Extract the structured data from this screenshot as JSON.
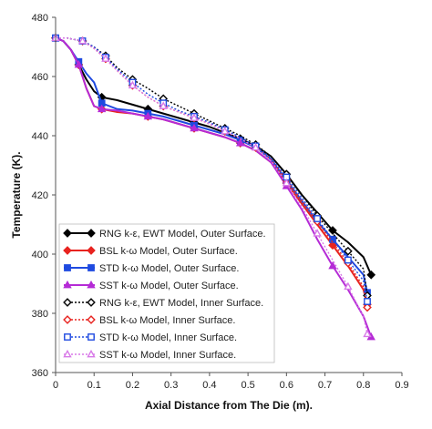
{
  "chart_data": {
    "type": "line",
    "xlabel": "Axial Distance from The Die (m).",
    "ylabel": "Temperature (K).",
    "xlim": [
      0,
      0.9
    ],
    "ylim": [
      360,
      480
    ],
    "xticks": [
      0,
      0.1,
      0.2,
      0.3,
      0.4,
      0.5,
      0.6,
      0.7,
      0.8,
      0.9
    ],
    "xtick_labels": [
      "0",
      "0.1",
      "0.2",
      "0.3",
      "0.4",
      "0.5",
      "0.6",
      "0.7",
      "0.8",
      "0.9"
    ],
    "yticks": [
      360,
      380,
      400,
      420,
      440,
      460,
      480
    ],
    "ytick_labels": [
      "360",
      "380",
      "400",
      "420",
      "440",
      "460",
      "480"
    ],
    "legend_position": "bottom-left",
    "grid": false,
    "series": [
      {
        "name": "RNG k-ε, EWT Model, Outer Surface.",
        "color": "#000000",
        "marker": "diamond",
        "dash": "solid",
        "markerFill": "#000000",
        "x": [
          0.0,
          0.02,
          0.04,
          0.06,
          0.08,
          0.1,
          0.12,
          0.16,
          0.2,
          0.24,
          0.28,
          0.32,
          0.36,
          0.4,
          0.44,
          0.48,
          0.52,
          0.56,
          0.6,
          0.64,
          0.68,
          0.72,
          0.76,
          0.8,
          0.82
        ],
        "y": [
          473,
          472,
          469,
          464,
          459,
          455,
          453,
          452,
          450.5,
          449,
          447.5,
          446,
          444.5,
          443,
          441,
          439,
          436.5,
          433,
          427,
          420,
          414,
          408,
          404,
          399,
          393
        ]
      },
      {
        "name": "BSL k-ω Model, Outer Surface.",
        "color": "#e8231f",
        "marker": "diamond",
        "dash": "solid",
        "markerFill": "#e8231f",
        "x": [
          0.0,
          0.02,
          0.04,
          0.06,
          0.08,
          0.1,
          0.12,
          0.16,
          0.2,
          0.24,
          0.28,
          0.32,
          0.36,
          0.4,
          0.44,
          0.48,
          0.52,
          0.56,
          0.6,
          0.64,
          0.68,
          0.72,
          0.76,
          0.8,
          0.81
        ],
        "y": [
          473,
          472,
          469,
          464,
          456,
          450,
          449,
          448,
          447.5,
          446.5,
          445.5,
          444,
          442.5,
          441,
          439.5,
          437.5,
          435,
          431,
          424,
          417,
          410,
          403,
          396,
          388,
          383
        ]
      },
      {
        "name": "STD k-ω Model, Outer Surface.",
        "color": "#1f4ae0",
        "marker": "square",
        "dash": "solid",
        "markerFill": "#1f4ae0",
        "x": [
          0.0,
          0.02,
          0.04,
          0.06,
          0.08,
          0.1,
          0.12,
          0.16,
          0.2,
          0.24,
          0.28,
          0.32,
          0.36,
          0.4,
          0.44,
          0.48,
          0.52,
          0.56,
          0.6,
          0.64,
          0.68,
          0.72,
          0.76,
          0.8,
          0.81
        ],
        "y": [
          473,
          472,
          469,
          465,
          461,
          458,
          451,
          449,
          448.5,
          447.5,
          446.5,
          445,
          443.5,
          442,
          440.5,
          438.5,
          436,
          432,
          425,
          418,
          411,
          405,
          399,
          393,
          387
        ]
      },
      {
        "name": "SST k-ω Model, Outer Surface.",
        "color": "#b52bd6",
        "marker": "triangle",
        "dash": "solid",
        "markerFill": "#b52bd6",
        "x": [
          0.0,
          0.02,
          0.04,
          0.06,
          0.08,
          0.1,
          0.12,
          0.16,
          0.2,
          0.24,
          0.28,
          0.32,
          0.36,
          0.4,
          0.44,
          0.48,
          0.52,
          0.56,
          0.6,
          0.64,
          0.68,
          0.72,
          0.76,
          0.8,
          0.82
        ],
        "y": [
          473,
          472,
          469,
          464,
          456,
          450,
          449,
          448.5,
          447.5,
          446.5,
          445.5,
          444,
          442.5,
          441,
          439.5,
          437.5,
          435,
          431,
          423,
          415,
          405,
          396,
          388,
          379,
          372
        ]
      },
      {
        "name": "RNG k-ε, EWT Model, Inner Surface.",
        "color": "#000000",
        "marker": "diamond",
        "dash": "dotted",
        "markerFill": "#ffffff",
        "x": [
          0.0,
          0.03,
          0.07,
          0.1,
          0.13,
          0.16,
          0.2,
          0.24,
          0.28,
          0.32,
          0.36,
          0.4,
          0.44,
          0.48,
          0.52,
          0.56,
          0.6,
          0.64,
          0.68,
          0.72,
          0.76,
          0.8,
          0.81
        ],
        "y": [
          473,
          473,
          472,
          470,
          467,
          463,
          459,
          456,
          452.5,
          450,
          447.5,
          445,
          442.5,
          440,
          437,
          433,
          427,
          420,
          413,
          407,
          401,
          395,
          386
        ]
      },
      {
        "name": "BSL k-ω Model, Inner Surface.",
        "color": "#e8231f",
        "marker": "diamond",
        "dash": "dotted",
        "markerFill": "#ffffff",
        "x": [
          0.0,
          0.03,
          0.07,
          0.1,
          0.13,
          0.16,
          0.2,
          0.24,
          0.28,
          0.32,
          0.36,
          0.4,
          0.44,
          0.48,
          0.52,
          0.56,
          0.6,
          0.64,
          0.68,
          0.72,
          0.76,
          0.8,
          0.81
        ],
        "y": [
          473,
          473,
          472,
          469.5,
          466,
          462,
          457,
          453,
          450,
          448,
          446,
          444,
          441.5,
          439,
          436,
          432,
          425,
          418,
          411,
          404,
          397,
          389,
          382
        ]
      },
      {
        "name": "STD k-ω Model, Inner Surface.",
        "color": "#1f4ae0",
        "marker": "square",
        "dash": "dotted",
        "markerFill": "#ffffff",
        "x": [
          0.0,
          0.03,
          0.07,
          0.1,
          0.13,
          0.16,
          0.2,
          0.24,
          0.28,
          0.32,
          0.36,
          0.4,
          0.44,
          0.48,
          0.52,
          0.56,
          0.6,
          0.64,
          0.68,
          0.72,
          0.76,
          0.8,
          0.81
        ],
        "y": [
          473,
          473,
          472,
          470,
          466.5,
          462.5,
          458,
          454,
          451,
          448.5,
          446.5,
          444.5,
          442,
          439.5,
          436.5,
          432.5,
          426,
          419,
          412,
          405,
          398,
          391,
          384
        ]
      },
      {
        "name": "SST k-ω Model, Inner Surface.",
        "color": "#d879e8",
        "marker": "triangle",
        "dash": "dotted",
        "markerFill": "#ffffff",
        "x": [
          0.0,
          0.03,
          0.07,
          0.1,
          0.13,
          0.16,
          0.2,
          0.24,
          0.28,
          0.32,
          0.36,
          0.4,
          0.44,
          0.48,
          0.52,
          0.56,
          0.6,
          0.64,
          0.68,
          0.72,
          0.76,
          0.8,
          0.81
        ],
        "y": [
          473,
          473,
          472,
          469.5,
          466,
          462,
          457,
          453,
          450,
          448,
          446,
          444,
          441.5,
          439,
          436,
          431.5,
          424,
          416,
          407,
          398,
          389,
          379,
          373
        ]
      }
    ]
  }
}
